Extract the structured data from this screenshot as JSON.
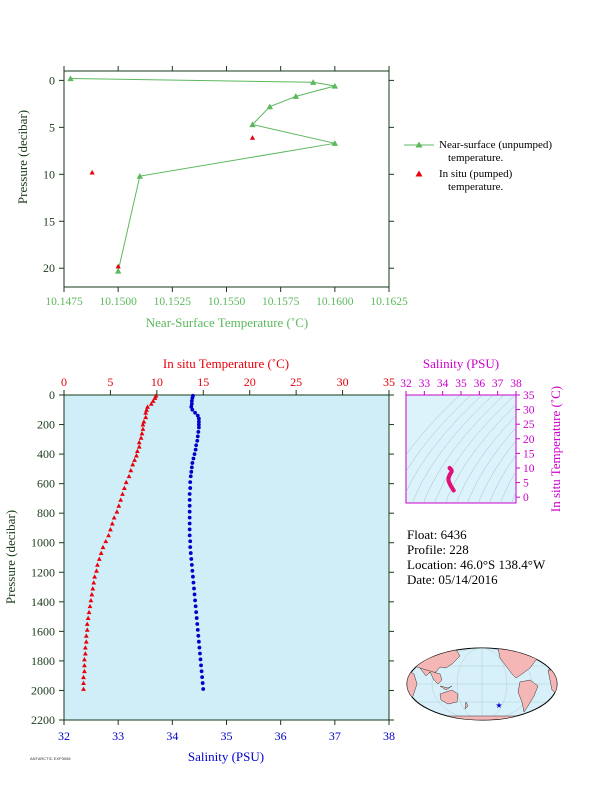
{
  "colors": {
    "near_surface": "#5cb85c",
    "in_situ_temp": "#e8000b",
    "salinity": "#0000cc",
    "ts_frame": "#cc00cc",
    "profile_bg": "#cfeef8",
    "ts_bg": "#ddf3fb",
    "ts_track": "#e0107a",
    "axis_dark": "#1a3a1a",
    "map_land": "#f5b6b6",
    "map_sea": "#d8f0fa",
    "float_marker": "#0000cc"
  },
  "info": {
    "float": "Float:  6436",
    "profile": "Profile:  228",
    "location": "Location:  46.0°S  138.4°W",
    "date": "Date:  05/14/2016"
  },
  "footer_small": "ANTARCTIC EXP3056",
  "chart_data": [
    {
      "type": "line",
      "name": "near-surface",
      "xlabel": "Near-Surface Temperature (˚C)",
      "ylabel": "Pressure (decibar)",
      "xlim": [
        10.1475,
        10.1625
      ],
      "ylim": [
        22,
        -1
      ],
      "x_ticks": [
        10.1475,
        10.15,
        10.1525,
        10.155,
        10.1575,
        10.16,
        10.1625
      ],
      "x_tick_labels": [
        "10.1475",
        "10.1500",
        "10.1525",
        "10.1550",
        "10.1575",
        "10.1600",
        "10.1625"
      ],
      "y_ticks": [
        0,
        5,
        10,
        15,
        20
      ],
      "series": [
        {
          "name": "Near-surface (unpumped) temperature.",
          "marker": "triangle",
          "points": [
            [
              10.1478,
              -0.2
            ],
            [
              10.159,
              0.2
            ],
            [
              10.16,
              0.6
            ],
            [
              10.1582,
              1.7
            ],
            [
              10.157,
              2.8
            ],
            [
              10.1562,
              4.7
            ],
            [
              10.16,
              6.7
            ],
            [
              10.151,
              10.2
            ],
            [
              10.15,
              20.3
            ]
          ]
        },
        {
          "name": "In situ (pumped) temperature.",
          "marker": "triangle",
          "points": [
            [
              10.1488,
              9.8
            ],
            [
              10.1562,
              6.1
            ],
            [
              10.15,
              19.8
            ]
          ]
        }
      ],
      "legend": [
        "Near-surface (unpumped)",
        "temperature.",
        "In situ (pumped)",
        "temperature."
      ]
    },
    {
      "type": "scatter",
      "name": "profile",
      "ylabel": "Pressure (decibar)",
      "ylim": [
        2200,
        0
      ],
      "y_ticks": [
        0,
        200,
        400,
        600,
        800,
        1000,
        1200,
        1400,
        1600,
        1800,
        2000,
        2200
      ],
      "top_axis": {
        "label": "In situ Temperature (˚C)",
        "lim": [
          0,
          35
        ],
        "ticks": [
          0,
          5,
          10,
          15,
          20,
          25,
          30,
          35
        ]
      },
      "bottom_axis": {
        "label": "Salinity (PSU)",
        "lim": [
          32,
          38
        ],
        "ticks": [
          32,
          33,
          34,
          35,
          36,
          37,
          38
        ]
      },
      "temperature": [
        [
          9.9,
          5
        ],
        [
          9.8,
          20
        ],
        [
          9.6,
          40
        ],
        [
          9.4,
          60
        ],
        [
          9.0,
          80
        ],
        [
          8.9,
          100
        ],
        [
          8.8,
          120
        ],
        [
          8.8,
          150
        ],
        [
          8.6,
          180
        ],
        [
          8.5,
          200
        ],
        [
          8.5,
          230
        ],
        [
          8.4,
          260
        ],
        [
          8.3,
          290
        ],
        [
          8.1,
          320
        ],
        [
          8.1,
          350
        ],
        [
          7.9,
          380
        ],
        [
          7.8,
          410
        ],
        [
          7.6,
          440
        ],
        [
          7.4,
          470
        ],
        [
          7.2,
          510
        ],
        [
          7.0,
          550
        ],
        [
          6.7,
          590
        ],
        [
          6.5,
          630
        ],
        [
          6.3,
          670
        ],
        [
          6.1,
          710
        ],
        [
          5.9,
          750
        ],
        [
          5.7,
          790
        ],
        [
          5.4,
          830
        ],
        [
          5.2,
          870
        ],
        [
          5.0,
          910
        ],
        [
          4.8,
          950
        ],
        [
          4.5,
          990
        ],
        [
          4.2,
          1030
        ],
        [
          4.0,
          1070
        ],
        [
          3.8,
          1110
        ],
        [
          3.6,
          1150
        ],
        [
          3.5,
          1190
        ],
        [
          3.3,
          1230
        ],
        [
          3.2,
          1270
        ],
        [
          3.1,
          1310
        ],
        [
          3.0,
          1350
        ],
        [
          2.9,
          1390
        ],
        [
          2.8,
          1430
        ],
        [
          2.7,
          1470
        ],
        [
          2.6,
          1510
        ],
        [
          2.5,
          1550
        ],
        [
          2.5,
          1590
        ],
        [
          2.4,
          1630
        ],
        [
          2.4,
          1670
        ],
        [
          2.3,
          1710
        ],
        [
          2.3,
          1750
        ],
        [
          2.2,
          1790
        ],
        [
          2.2,
          1830
        ],
        [
          2.2,
          1870
        ],
        [
          2.1,
          1910
        ],
        [
          2.1,
          1950
        ],
        [
          2.1,
          1990
        ]
      ],
      "salinity": [
        [
          34.38,
          5
        ],
        [
          34.37,
          20
        ],
        [
          34.36,
          40
        ],
        [
          34.36,
          60
        ],
        [
          34.35,
          80
        ],
        [
          34.37,
          100
        ],
        [
          34.42,
          120
        ],
        [
          34.47,
          140
        ],
        [
          34.49,
          160
        ],
        [
          34.49,
          180
        ],
        [
          34.49,
          200
        ],
        [
          34.49,
          220
        ],
        [
          34.48,
          250
        ],
        [
          34.47,
          280
        ],
        [
          34.46,
          310
        ],
        [
          34.44,
          340
        ],
        [
          34.43,
          370
        ],
        [
          34.41,
          400
        ],
        [
          34.39,
          430
        ],
        [
          34.37,
          460
        ],
        [
          34.36,
          490
        ],
        [
          34.35,
          520
        ],
        [
          34.34,
          550
        ],
        [
          34.33,
          590
        ],
        [
          34.33,
          630
        ],
        [
          34.32,
          670
        ],
        [
          34.32,
          710
        ],
        [
          34.32,
          750
        ],
        [
          34.32,
          790
        ],
        [
          34.32,
          830
        ],
        [
          34.32,
          870
        ],
        [
          34.32,
          910
        ],
        [
          34.32,
          950
        ],
        [
          34.33,
          990
        ],
        [
          34.33,
          1030
        ],
        [
          34.34,
          1070
        ],
        [
          34.35,
          1110
        ],
        [
          34.36,
          1150
        ],
        [
          34.37,
          1190
        ],
        [
          34.38,
          1230
        ],
        [
          34.39,
          1270
        ],
        [
          34.4,
          1310
        ],
        [
          34.41,
          1350
        ],
        [
          34.42,
          1390
        ],
        [
          34.43,
          1430
        ],
        [
          34.44,
          1470
        ],
        [
          34.45,
          1510
        ],
        [
          34.46,
          1550
        ],
        [
          34.47,
          1590
        ],
        [
          34.48,
          1630
        ],
        [
          34.49,
          1670
        ],
        [
          34.5,
          1710
        ],
        [
          34.51,
          1750
        ],
        [
          34.52,
          1790
        ],
        [
          34.53,
          1830
        ],
        [
          34.54,
          1870
        ],
        [
          34.55,
          1910
        ],
        [
          34.56,
          1950
        ],
        [
          34.57,
          1990
        ]
      ]
    },
    {
      "type": "scatter",
      "name": "ts-diagram",
      "xlabel": "Salinity (PSU)",
      "ylabel": "In situ Temperature (˚C)",
      "xlim": [
        32,
        38
      ],
      "ylim": [
        -2,
        35
      ],
      "x_ticks": [
        32,
        33,
        34,
        35,
        36,
        37,
        38
      ],
      "y_ticks": [
        0,
        5,
        10,
        15,
        20,
        25,
        30,
        35
      ],
      "points": [
        [
          34.6,
          2.3
        ],
        [
          34.55,
          2.8
        ],
        [
          34.5,
          3.3
        ],
        [
          34.45,
          3.8
        ],
        [
          34.41,
          4.3
        ],
        [
          34.37,
          4.8
        ],
        [
          34.34,
          5.3
        ],
        [
          34.32,
          5.8
        ],
        [
          34.32,
          6.3
        ],
        [
          34.33,
          6.8
        ],
        [
          34.36,
          7.3
        ],
        [
          34.4,
          7.8
        ],
        [
          34.45,
          8.3
        ],
        [
          34.49,
          8.8
        ],
        [
          34.48,
          9.3
        ],
        [
          34.42,
          9.7
        ],
        [
          34.38,
          10.0
        ]
      ]
    }
  ],
  "map": {
    "float_marker": "★"
  }
}
